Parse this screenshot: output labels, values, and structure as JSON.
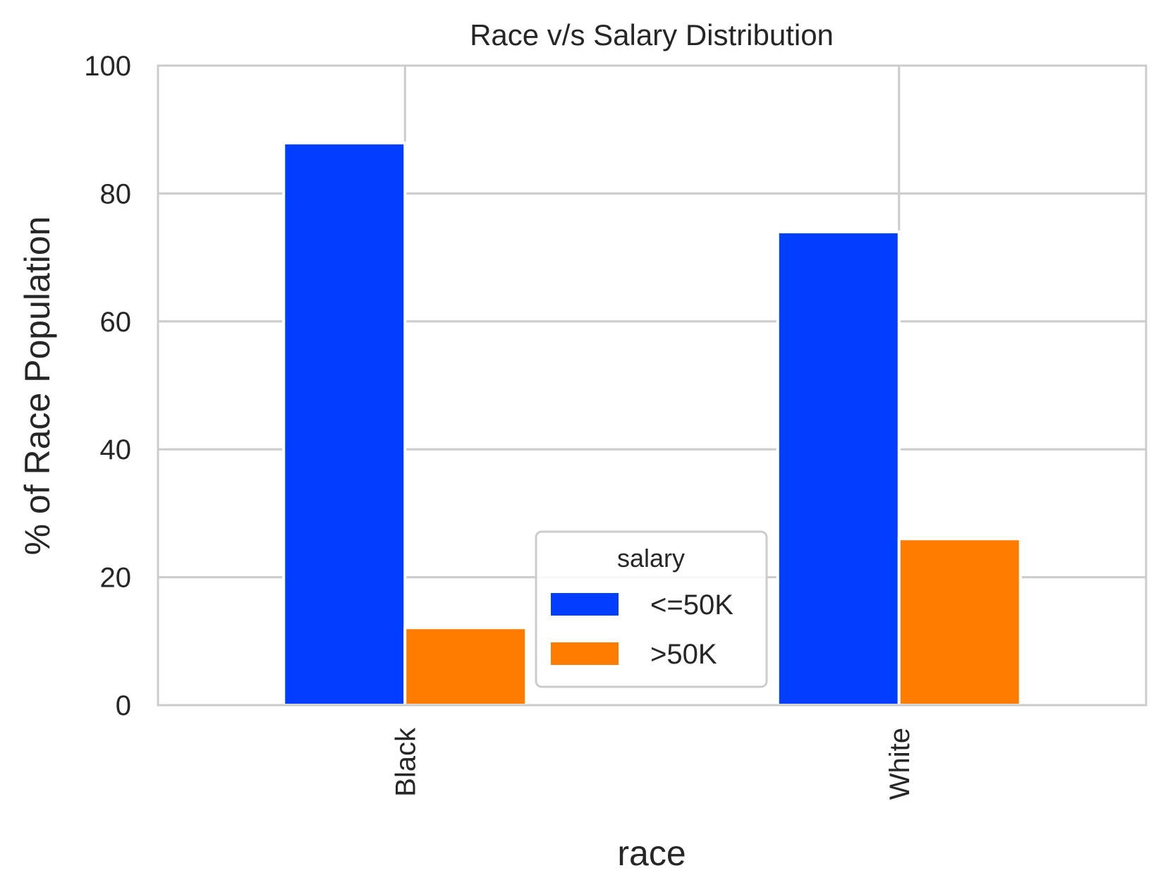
{
  "chart_data": {
    "type": "bar",
    "title": "Race v/s Salary Distribution",
    "xlabel": "race",
    "ylabel": "% of Race Population",
    "categories": [
      "Black",
      "White"
    ],
    "series": [
      {
        "name": "<=50K",
        "values": [
          87.9,
          74.0
        ],
        "color": "#023eff"
      },
      {
        "name": ">50K",
        "values": [
          12.1,
          26.0
        ],
        "color": "#ff7c00"
      }
    ],
    "ylim": [
      0,
      100
    ],
    "yticks": [
      "0",
      "20",
      "40",
      "60",
      "80",
      "100"
    ],
    "grid": true,
    "legend": {
      "title": "salary",
      "placement": "lower-center"
    }
  }
}
